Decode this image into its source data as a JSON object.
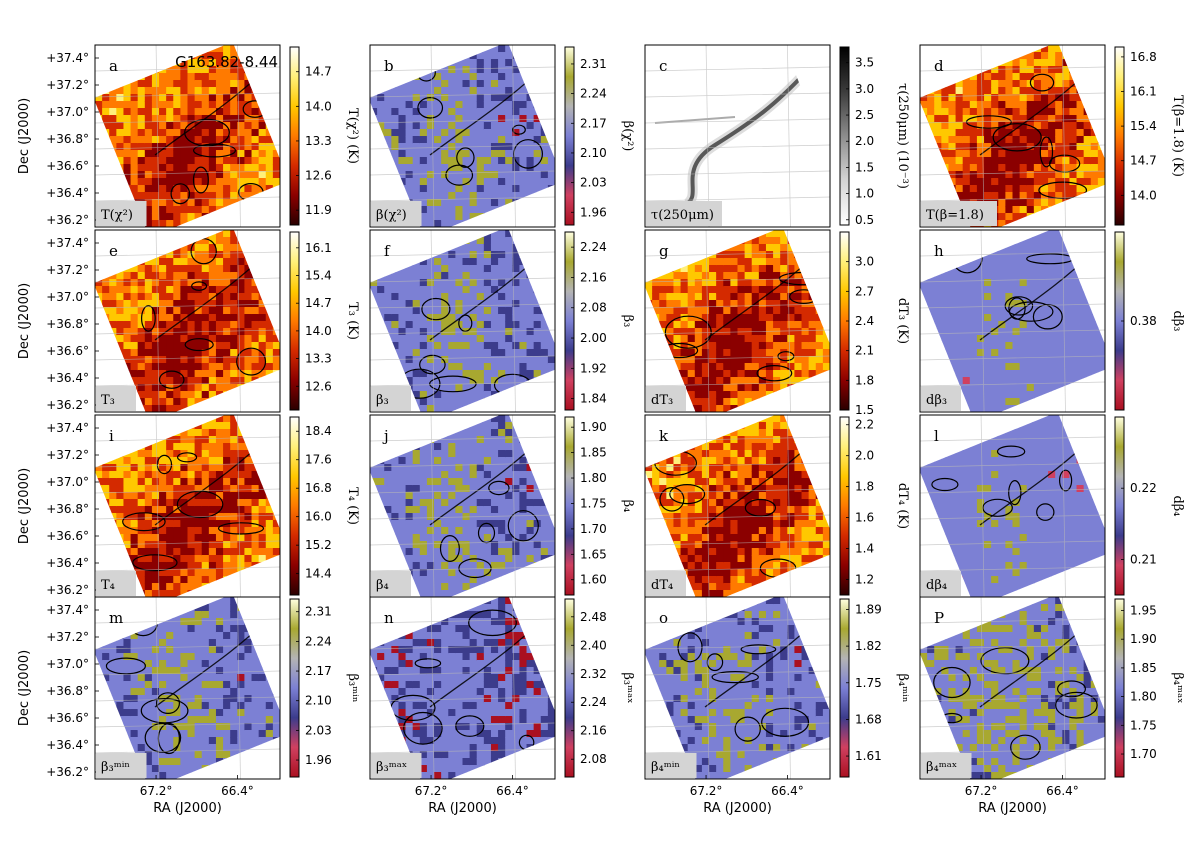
{
  "figure": {
    "source_label": "G163.82-8.44",
    "ra_label": "RA (J2000)",
    "dec_label": "Dec (J2000)",
    "ra_ticks": [
      "67.2°",
      "66.4°"
    ],
    "dec_ticks": [
      "+37.4°",
      "+37.2°",
      "+37.0°",
      "+36.8°",
      "+36.6°",
      "+36.4°",
      "+36.2°"
    ]
  },
  "colormaps": {
    "heat": [
      "#2a0000",
      "#8b0000",
      "#d42a00",
      "#ff7a00",
      "#ffc800",
      "#fff07a",
      "#ffffff"
    ],
    "beta": [
      "#aa1020",
      "#d04060",
      "#3c3c8c",
      "#7c80d4",
      "#b4b4b4",
      "#a8a830",
      "#ffffe0"
    ],
    "gray": [
      "#ffffff",
      "#d4d4d4",
      "#8c8c8c",
      "#3c3c3c",
      "#000000"
    ]
  },
  "panels": [
    {
      "id": "a",
      "letter": "a",
      "corner_label": "T(χ²)",
      "colormap": "heat",
      "cbar_title": "T(χ²) (K)",
      "cbar_ticks": [
        "14.7",
        "14.0",
        "13.3",
        "12.6",
        "11.9"
      ],
      "cbar_range": [
        11.6,
        15.2
      ],
      "style": "heat",
      "seed": 11,
      "axis_y": true,
      "axis_x": false
    },
    {
      "id": "b",
      "letter": "b",
      "corner_label": "β(χ²)",
      "colormap": "beta",
      "cbar_title": "β(χ²)",
      "cbar_ticks": [
        "2.31",
        "2.24",
        "2.17",
        "2.10",
        "2.03",
        "1.96"
      ],
      "cbar_range": [
        1.93,
        2.35
      ],
      "style": "beta",
      "seed": 23,
      "axis_y": false,
      "axis_x": false
    },
    {
      "id": "c",
      "letter": "c",
      "corner_label": "τ(250μm)",
      "colormap": "gray",
      "cbar_title": "τ(250μm) (10⁻³)",
      "cbar_ticks": [
        "3.5",
        "3.0",
        "2.5",
        "2.0",
        "1.5",
        "1.0",
        "0.5"
      ],
      "cbar_range": [
        0.4,
        3.8
      ],
      "style": "gray",
      "seed": 37,
      "axis_y": false,
      "axis_x": false
    },
    {
      "id": "d",
      "letter": "d",
      "corner_label": "T(β=1.8)",
      "colormap": "heat",
      "cbar_title": "T(β=1.8) (K)",
      "cbar_ticks": [
        "16.8",
        "16.1",
        "15.4",
        "14.7",
        "14.0"
      ],
      "cbar_range": [
        13.4,
        17.0
      ],
      "style": "heat",
      "seed": 41,
      "axis_y": false,
      "axis_x": false
    },
    {
      "id": "e",
      "letter": "e",
      "corner_label": "T₃",
      "colormap": "heat",
      "cbar_title": "T₃ (K)",
      "cbar_ticks": [
        "16.1",
        "15.4",
        "14.7",
        "14.0",
        "13.3",
        "12.6"
      ],
      "cbar_range": [
        12.0,
        16.5
      ],
      "style": "heat",
      "seed": 53,
      "axis_y": true,
      "axis_x": false
    },
    {
      "id": "f",
      "letter": "f",
      "corner_label": "β₃",
      "colormap": "beta",
      "cbar_title": "β₃",
      "cbar_ticks": [
        "2.24",
        "2.16",
        "2.08",
        "2.00",
        "1.92",
        "1.84"
      ],
      "cbar_range": [
        1.81,
        2.28
      ],
      "style": "beta",
      "seed": 61,
      "axis_y": false,
      "axis_x": false
    },
    {
      "id": "g",
      "letter": "g",
      "corner_label": "dT₃",
      "colormap": "heat",
      "cbar_title": "dT₃ (K)",
      "cbar_ticks": [
        "3.0",
        "2.7",
        "2.4",
        "2.1",
        "1.8",
        "1.5"
      ],
      "cbar_range": [
        1.5,
        3.3
      ],
      "style": "heatsmooth",
      "seed": 71,
      "axis_y": false,
      "axis_x": false
    },
    {
      "id": "h",
      "letter": "h",
      "corner_label": "dβ₃",
      "colormap": "beta",
      "cbar_title": "dβ₃",
      "cbar_ticks": [
        "0.38"
      ],
      "cbar_range": [
        0.3,
        0.46
      ],
      "style": "betasmooth",
      "seed": 83,
      "axis_y": false,
      "axis_x": false
    },
    {
      "id": "i",
      "letter": "i",
      "corner_label": "T₄",
      "colormap": "heat",
      "cbar_title": "T₄ (K)",
      "cbar_ticks": [
        "18.4",
        "17.6",
        "16.8",
        "16.0",
        "15.2",
        "14.4"
      ],
      "cbar_range": [
        13.8,
        18.8
      ],
      "style": "heat",
      "seed": 97,
      "axis_y": true,
      "axis_x": false
    },
    {
      "id": "j",
      "letter": "j",
      "corner_label": "β₄",
      "colormap": "beta",
      "cbar_title": "β₄",
      "cbar_ticks": [
        "1.90",
        "1.85",
        "1.80",
        "1.75",
        "1.70",
        "1.65",
        "1.60"
      ],
      "cbar_range": [
        1.57,
        1.92
      ],
      "style": "beta",
      "seed": 103,
      "axis_y": false,
      "axis_x": false
    },
    {
      "id": "k",
      "letter": "k",
      "corner_label": "dT₄",
      "colormap": "heat",
      "cbar_title": "dT₄ (K)",
      "cbar_ticks": [
        "2.2",
        "2.0",
        "1.8",
        "1.6",
        "1.4",
        "1.2"
      ],
      "cbar_range": [
        1.1,
        2.25
      ],
      "style": "heatsmooth",
      "seed": 113,
      "axis_y": false,
      "axis_x": false
    },
    {
      "id": "l",
      "letter": "l",
      "corner_label": "dβ₄",
      "colormap": "beta",
      "cbar_title": "dβ₄",
      "cbar_ticks": [
        "0.22",
        "0.21"
      ],
      "cbar_range": [
        0.205,
        0.23
      ],
      "style": "betasmooth",
      "seed": 127,
      "axis_y": false,
      "axis_x": false
    },
    {
      "id": "m",
      "letter": "m",
      "corner_label": "β₃ᵐⁱⁿ",
      "colormap": "beta",
      "cbar_title": "β₃ᵐⁱⁿ",
      "cbar_ticks": [
        "2.31",
        "2.24",
        "2.17",
        "2.10",
        "2.03",
        "1.96"
      ],
      "cbar_range": [
        1.92,
        2.34
      ],
      "style": "beta",
      "seed": 131,
      "axis_y": true,
      "axis_x": true
    },
    {
      "id": "n",
      "letter": "n",
      "corner_label": "β₃ᵐᵃˣ",
      "colormap": "beta",
      "cbar_title": "β₃ᵐᵃˣ",
      "cbar_ticks": [
        "2.48",
        "2.40",
        "2.32",
        "2.24",
        "2.16",
        "2.08"
      ],
      "cbar_range": [
        2.03,
        2.53
      ],
      "style": "betared",
      "seed": 149,
      "axis_y": false,
      "axis_x": true
    },
    {
      "id": "o",
      "letter": "o",
      "corner_label": "β₄ᵐⁱⁿ",
      "colormap": "beta",
      "cbar_title": "β₄ᵐⁱⁿ",
      "cbar_ticks": [
        "1.89",
        "1.82",
        "1.75",
        "1.68",
        "1.61"
      ],
      "cbar_range": [
        1.57,
        1.91
      ],
      "style": "beta",
      "seed": 157,
      "axis_y": false,
      "axis_x": true
    },
    {
      "id": "p",
      "letter": "P",
      "corner_label": "β₄ᵐᵃˣ",
      "colormap": "beta",
      "cbar_title": "β₄ᵐᵃˣ",
      "cbar_ticks": [
        "1.95",
        "1.90",
        "1.85",
        "1.80",
        "1.75",
        "1.70"
      ],
      "cbar_range": [
        1.66,
        1.97
      ],
      "style": "betayellow",
      "seed": 167,
      "axis_y": false,
      "axis_x": true
    }
  ]
}
